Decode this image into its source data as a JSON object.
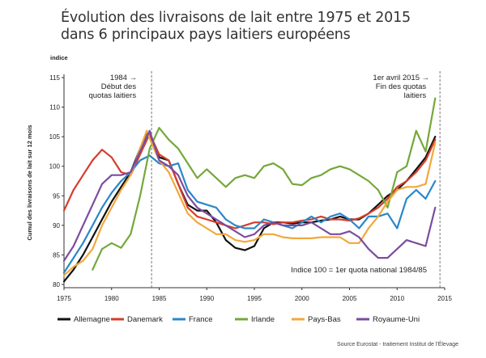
{
  "title_line1": "Évolution des livraisons de lait entre 1975 et 2015",
  "title_line2": "dans 6 principaux pays laitiers européens",
  "source": "Source Eurostat - traitement Institut de l'Élevage",
  "chart_data": {
    "type": "line",
    "title": "Évolution des livraisons de lait entre 1975 et 2015 dans 6 principaux pays laitiers européens",
    "ylabel": "Cumul des livraisons de lait sur 12 mois",
    "ytitle": "indice",
    "xlim": [
      1975,
      2015
    ],
    "ylim": [
      80,
      115
    ],
    "xticks": [
      "1975",
      "1980",
      "1985",
      "1990",
      "1995",
      "2000",
      "2005",
      "2010",
      "2015"
    ],
    "yticks": [
      "80",
      "85",
      "90",
      "95",
      "100",
      "105",
      "110",
      "115"
    ],
    "grid": false,
    "legend_position": "bottom",
    "annotations": {
      "quota_start_year": "1984",
      "quota_start_text1": "Début des",
      "quota_start_text2": "quotas laitiers",
      "quota_end_title": "1er avril 2015",
      "quota_end_text1": "Fin des quotas",
      "quota_end_text2": "laitiers",
      "index_note": "Indice 100 = 1er quota national 1984/85"
    },
    "vlines": [
      1984.2,
      2014.5
    ],
    "series": [
      {
        "name": "Allemagne",
        "color": "#111111",
        "points": [
          [
            1975,
            80.5
          ],
          [
            1976,
            82.5
          ],
          [
            1977,
            85
          ],
          [
            1978,
            88
          ],
          [
            1979,
            91
          ],
          [
            1980,
            94
          ],
          [
            1981,
            96.5
          ],
          [
            1982,
            99
          ],
          [
            1983,
            103
          ],
          [
            1983.7,
            105.8
          ],
          [
            1984.3,
            104
          ],
          [
            1985,
            101.5
          ],
          [
            1986,
            101
          ],
          [
            1987,
            97
          ],
          [
            1988,
            93.5
          ],
          [
            1989,
            92.5
          ],
          [
            1990,
            92.5
          ],
          [
            1991,
            90.5
          ],
          [
            1992,
            87.5
          ],
          [
            1993,
            86.2
          ],
          [
            1994,
            85.8
          ],
          [
            1995,
            86.5
          ],
          [
            1996,
            89.5
          ],
          [
            1997,
            90.5
          ],
          [
            1998,
            90.5
          ],
          [
            1999,
            90.3
          ],
          [
            2000,
            90.5
          ],
          [
            2001,
            90.5
          ],
          [
            2002,
            90.8
          ],
          [
            2003,
            91
          ],
          [
            2004,
            91.5
          ],
          [
            2005,
            91
          ],
          [
            2006,
            91
          ],
          [
            2007,
            92
          ],
          [
            2008,
            93.5
          ],
          [
            2009,
            95
          ],
          [
            2010,
            96
          ],
          [
            2011,
            97.5
          ],
          [
            2012,
            99.5
          ],
          [
            2013,
            101.5
          ],
          [
            2014,
            105
          ]
        ]
      },
      {
        "name": "Danemark",
        "color": "#d63d2a",
        "points": [
          [
            1975,
            92.5
          ],
          [
            1976,
            96
          ],
          [
            1977,
            98.5
          ],
          [
            1978,
            101
          ],
          [
            1979,
            102.8
          ],
          [
            1980,
            101.5
          ],
          [
            1981,
            99
          ],
          [
            1982,
            98.5
          ],
          [
            1983,
            102
          ],
          [
            1984,
            105.5
          ],
          [
            1985,
            102
          ],
          [
            1986,
            101
          ],
          [
            1987,
            97
          ],
          [
            1988,
            93
          ],
          [
            1989,
            91.5
          ],
          [
            1990,
            91
          ],
          [
            1991,
            90.5
          ],
          [
            1992,
            90
          ],
          [
            1993,
            89.5
          ],
          [
            1994,
            90
          ],
          [
            1995,
            90.5
          ],
          [
            1996,
            90.5
          ],
          [
            1997,
            90.2
          ],
          [
            1998,
            90.5
          ],
          [
            1999,
            90.5
          ],
          [
            2000,
            90.8
          ],
          [
            2001,
            91
          ],
          [
            2002,
            91.5
          ],
          [
            2003,
            91
          ],
          [
            2004,
            91
          ],
          [
            2005,
            90.8
          ],
          [
            2006,
            91.2
          ],
          [
            2007,
            92
          ],
          [
            2008,
            93
          ],
          [
            2009,
            94.5
          ],
          [
            2010,
            96.5
          ],
          [
            2011,
            97.5
          ],
          [
            2012,
            99
          ],
          [
            2013,
            101
          ],
          [
            2014,
            104.5
          ]
        ]
      },
      {
        "name": "France",
        "color": "#2a87c9",
        "points": [
          [
            1975,
            82
          ],
          [
            1976,
            84.5
          ],
          [
            1977,
            87
          ],
          [
            1978,
            90
          ],
          [
            1979,
            93
          ],
          [
            1980,
            95.5
          ],
          [
            1981,
            97.5
          ],
          [
            1982,
            99
          ],
          [
            1983,
            101
          ],
          [
            1984,
            101.8
          ],
          [
            1985,
            100.5
          ],
          [
            1986,
            100
          ],
          [
            1987,
            100.5
          ],
          [
            1988,
            96
          ],
          [
            1989,
            94
          ],
          [
            1990,
            93.5
          ],
          [
            1991,
            93
          ],
          [
            1992,
            91
          ],
          [
            1993,
            90
          ],
          [
            1994,
            89.5
          ],
          [
            1995,
            89.5
          ],
          [
            1996,
            91
          ],
          [
            1997,
            90.5
          ],
          [
            1998,
            90
          ],
          [
            1999,
            89.5
          ],
          [
            2000,
            90.5
          ],
          [
            2001,
            91.5
          ],
          [
            2002,
            90.5
          ],
          [
            2003,
            91.5
          ],
          [
            2004,
            92
          ],
          [
            2005,
            91
          ],
          [
            2006,
            89.5
          ],
          [
            2007,
            91.5
          ],
          [
            2008,
            91.5
          ],
          [
            2009,
            92
          ],
          [
            2010,
            89.5
          ],
          [
            2011,
            94.5
          ],
          [
            2012,
            96
          ],
          [
            2013,
            94.5
          ],
          [
            2014,
            97.5
          ]
        ]
      },
      {
        "name": "Irlande",
        "color": "#74a83a",
        "points": [
          [
            1978,
            82.5
          ],
          [
            1979,
            86
          ],
          [
            1980,
            87
          ],
          [
            1981,
            86.2
          ],
          [
            1982,
            88.5
          ],
          [
            1983,
            95
          ],
          [
            1984,
            103
          ],
          [
            1985,
            106.5
          ],
          [
            1986,
            104.5
          ],
          [
            1987,
            103
          ],
          [
            1988,
            100.5
          ],
          [
            1989,
            98
          ],
          [
            1990,
            99.5
          ],
          [
            1991,
            98
          ],
          [
            1992,
            96.5
          ],
          [
            1993,
            98
          ],
          [
            1994,
            98.5
          ],
          [
            1995,
            98
          ],
          [
            1996,
            100
          ],
          [
            1997,
            100.5
          ],
          [
            1998,
            99.5
          ],
          [
            1999,
            97
          ],
          [
            2000,
            96.8
          ],
          [
            2001,
            98
          ],
          [
            2002,
            98.5
          ],
          [
            2003,
            99.5
          ],
          [
            2004,
            100
          ],
          [
            2005,
            99.5
          ],
          [
            2006,
            98.5
          ],
          [
            2007,
            97.5
          ],
          [
            2008,
            96
          ],
          [
            2009,
            93
          ],
          [
            2010,
            99
          ],
          [
            2011,
            100
          ],
          [
            2012,
            106
          ],
          [
            2013,
            102.5
          ],
          [
            2014,
            111.5
          ]
        ]
      },
      {
        "name": "Pays-Bas",
        "color": "#f2a83b",
        "points": [
          [
            1975,
            81.5
          ],
          [
            1976,
            83
          ],
          [
            1977,
            84
          ],
          [
            1978,
            86
          ],
          [
            1979,
            90
          ],
          [
            1980,
            93
          ],
          [
            1981,
            96
          ],
          [
            1982,
            98.5
          ],
          [
            1983,
            103
          ],
          [
            1983.7,
            106
          ],
          [
            1984.3,
            103.5
          ],
          [
            1985,
            101
          ],
          [
            1986,
            99
          ],
          [
            1987,
            95.5
          ],
          [
            1988,
            92
          ],
          [
            1989,
            90.5
          ],
          [
            1990,
            89.5
          ],
          [
            1991,
            88.5
          ],
          [
            1992,
            88.5
          ],
          [
            1993,
            87.5
          ],
          [
            1994,
            87.2
          ],
          [
            1995,
            87.5
          ],
          [
            1996,
            88.5
          ],
          [
            1997,
            88.5
          ],
          [
            1998,
            88
          ],
          [
            1999,
            87.8
          ],
          [
            2000,
            87.8
          ],
          [
            2001,
            87.8
          ],
          [
            2002,
            88
          ],
          [
            2003,
            88
          ],
          [
            2004,
            88
          ],
          [
            2005,
            87
          ],
          [
            2006,
            87
          ],
          [
            2007,
            89.5
          ],
          [
            2008,
            91.5
          ],
          [
            2009,
            94
          ],
          [
            2010,
            96
          ],
          [
            2011,
            96.5
          ],
          [
            2012,
            96.5
          ],
          [
            2013,
            97
          ],
          [
            2014,
            104
          ]
        ]
      },
      {
        "name": "Royaume-Uni",
        "color": "#7b4ca0",
        "points": [
          [
            1975,
            84
          ],
          [
            1976,
            86.5
          ],
          [
            1977,
            90
          ],
          [
            1978,
            93.5
          ],
          [
            1979,
            97
          ],
          [
            1980,
            98.5
          ],
          [
            1981,
            98.5
          ],
          [
            1982,
            99
          ],
          [
            1983,
            102.5
          ],
          [
            1984,
            106
          ],
          [
            1985,
            101
          ],
          [
            1986,
            100
          ],
          [
            1987,
            98.5
          ],
          [
            1988,
            95
          ],
          [
            1989,
            93
          ],
          [
            1990,
            92
          ],
          [
            1991,
            91
          ],
          [
            1992,
            90
          ],
          [
            1993,
            89
          ],
          [
            1994,
            88
          ],
          [
            1995,
            88.5
          ],
          [
            1996,
            90
          ],
          [
            1997,
            90.5
          ],
          [
            1998,
            90
          ],
          [
            1999,
            90
          ],
          [
            2000,
            90
          ],
          [
            2001,
            90.5
          ],
          [
            2002,
            89.5
          ],
          [
            2003,
            88.5
          ],
          [
            2004,
            88.5
          ],
          [
            2005,
            89
          ],
          [
            2006,
            88
          ],
          [
            2007,
            86
          ],
          [
            2008,
            84.5
          ],
          [
            2009,
            84.5
          ],
          [
            2010,
            86
          ],
          [
            2011,
            87.5
          ],
          [
            2012,
            87
          ],
          [
            2013,
            86.5
          ],
          [
            2014,
            93
          ]
        ]
      }
    ]
  }
}
